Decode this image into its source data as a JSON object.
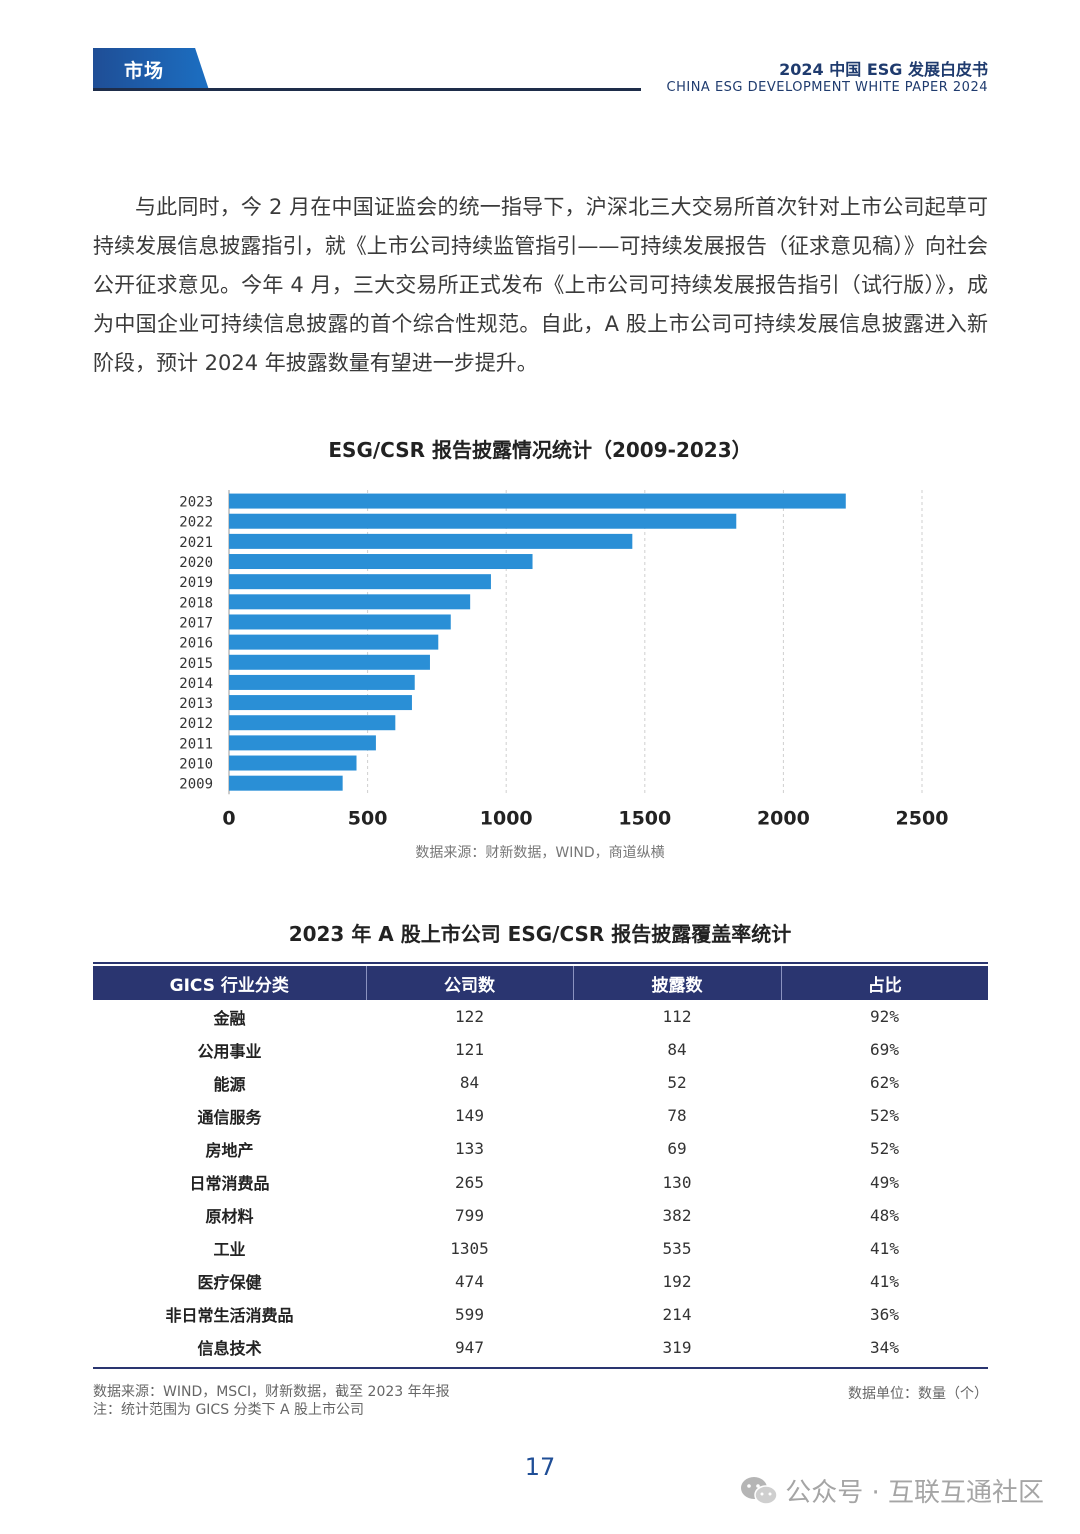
{
  "header": {
    "section_label": "市场",
    "title_cn": "2024 中国 ESG 发展白皮书",
    "title_en": "CHINA ESG DEVELOPMENT  WHITE PAPER 2024"
  },
  "paragraph": "与此同时，今 2 月在中国证监会的统一指导下，沪深北三大交易所首次针对上市公司起草可持续发展信息披露指引，就《上市公司持续监管指引——可持续发展报告（征求意见稿）》向社会公开征求意见。今年 4 月，三大交易所正式发布《上市公司可持续发展报告指引（试行版）》，成为中国企业可持续信息披露的首个综合性规范。自此，A 股上市公司可持续发展信息披露进入新阶段，预计 2024 年披露数量有望进一步提升。",
  "chart_data": {
    "type": "bar",
    "orientation": "horizontal",
    "title": "ESG/CSR 报告披露情况统计（2009-2023）",
    "categories": [
      "2023",
      "2022",
      "2021",
      "2020",
      "2019",
      "2018",
      "2017",
      "2016",
      "2015",
      "2014",
      "2013",
      "2012",
      "2011",
      "2010",
      "2009"
    ],
    "values": [
      2225,
      1830,
      1455,
      1095,
      945,
      870,
      800,
      755,
      725,
      670,
      660,
      600,
      530,
      460,
      410
    ],
    "xlim": [
      0,
      2500
    ],
    "xticks": [
      "0",
      "500",
      "1000",
      "1500",
      "2000",
      "2500"
    ],
    "grid": true,
    "legend": "none",
    "bar_color": "#2a8fd6",
    "source": "数据来源：财新数据，WIND，商道纵横"
  },
  "table": {
    "title": "2023 年 A 股上市公司 ESG/CSR 报告披露覆盖率统计",
    "headers": [
      "GICS 行业分类",
      "公司数",
      "披露数",
      "占比"
    ],
    "rows": [
      [
        "金融",
        "122",
        "112",
        "92%"
      ],
      [
        "公用事业",
        "121",
        "84",
        "69%"
      ],
      [
        "能源",
        "84",
        "52",
        "62%"
      ],
      [
        "通信服务",
        "149",
        "78",
        "52%"
      ],
      [
        "房地产",
        "133",
        "69",
        "52%"
      ],
      [
        "日常消费品",
        "265",
        "130",
        "49%"
      ],
      [
        "原材料",
        "799",
        "382",
        "48%"
      ],
      [
        "工业",
        "1305",
        "535",
        "41%"
      ],
      [
        "医疗保健",
        "474",
        "192",
        "41%"
      ],
      [
        "非日常生活消费品",
        "599",
        "214",
        "36%"
      ],
      [
        "信息技术",
        "947",
        "319",
        "34%"
      ]
    ],
    "header_color": "#2a3570",
    "note_source": "数据来源：WIND，MSCI，财新数据，截至 2023 年年报",
    "note_scope": "注：统计范围为 GICS 分类下 A 股上市公司",
    "unit": "数据单位：数量（个）"
  },
  "page_number": "17",
  "watermark": "公众号 · 互联互通社区"
}
